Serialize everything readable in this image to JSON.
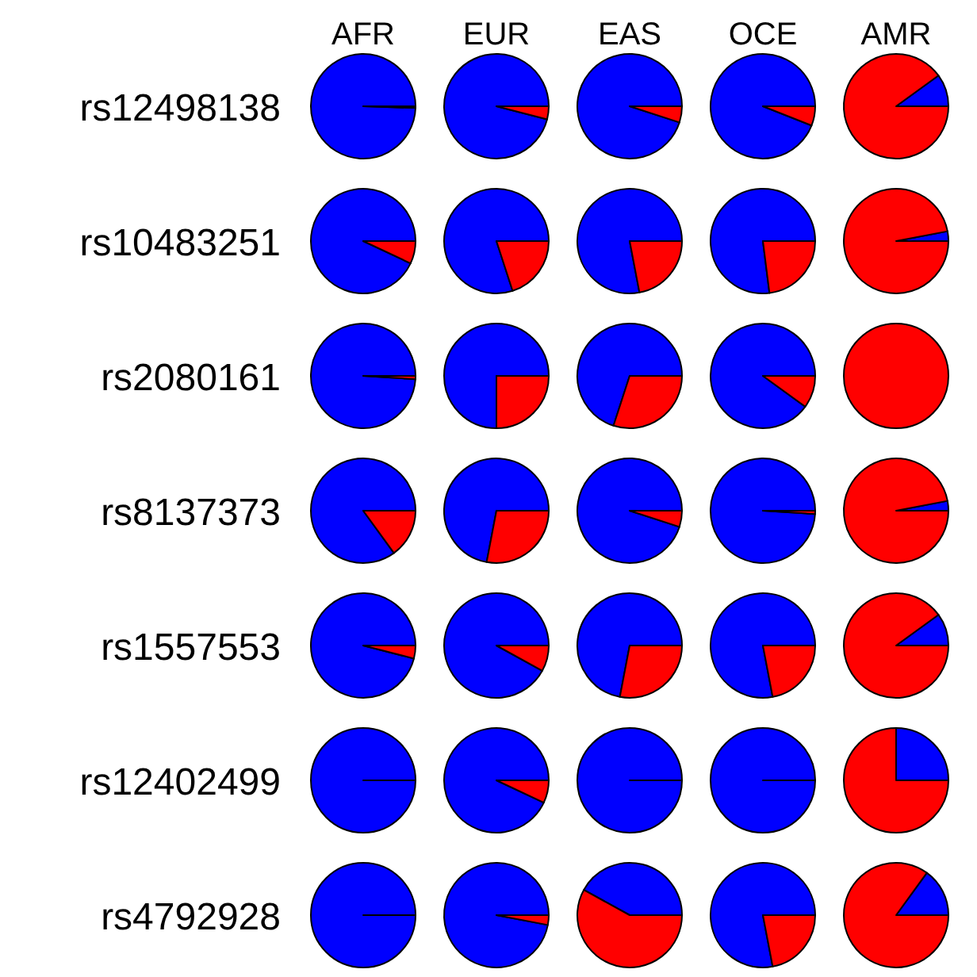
{
  "chart_data": [
    {
      "type": "pie",
      "title": "AFR",
      "ylabel": "rs12498138",
      "categories": [
        null,
        null
      ],
      "values": [
        99.5,
        0.5
      ],
      "colors": [
        "#0000ff",
        "#ff0000"
      ]
    },
    {
      "type": "pie",
      "title": "EUR",
      "categories": [
        null,
        null
      ],
      "values": [
        96,
        4
      ],
      "colors": [
        "#0000ff",
        "#ff0000"
      ]
    },
    {
      "type": "pie",
      "title": "EAS",
      "categories": [
        null,
        null
      ],
      "values": [
        95,
        5
      ],
      "colors": [
        "#0000ff",
        "#ff0000"
      ]
    },
    {
      "type": "pie",
      "title": "OCE",
      "categories": [
        null,
        null
      ],
      "values": [
        94,
        6
      ],
      "colors": [
        "#0000ff",
        "#ff0000"
      ]
    },
    {
      "type": "pie",
      "title": "AMR",
      "categories": [
        null,
        null
      ],
      "values": [
        10,
        90
      ],
      "colors": [
        "#0000ff",
        "#ff0000"
      ]
    },
    {
      "type": "pie",
      "ylabel": "rs10483251",
      "categories": [
        null,
        null
      ],
      "values": [
        93,
        7
      ],
      "colors": [
        "#0000ff",
        "#ff0000"
      ]
    },
    {
      "type": "pie",
      "categories": [
        null,
        null
      ],
      "values": [
        80,
        20
      ],
      "colors": [
        "#0000ff",
        "#ff0000"
      ]
    },
    {
      "type": "pie",
      "categories": [
        null,
        null
      ],
      "values": [
        78,
        22
      ],
      "colors": [
        "#0000ff",
        "#ff0000"
      ]
    },
    {
      "type": "pie",
      "categories": [
        null,
        null
      ],
      "values": [
        77,
        23
      ],
      "colors": [
        "#0000ff",
        "#ff0000"
      ]
    },
    {
      "type": "pie",
      "categories": [
        null,
        null
      ],
      "values": [
        3,
        97
      ],
      "colors": [
        "#0000ff",
        "#ff0000"
      ]
    },
    {
      "type": "pie",
      "ylabel": "rs2080161",
      "categories": [
        null,
        null
      ],
      "values": [
        99,
        1
      ],
      "colors": [
        "#0000ff",
        "#ff0000"
      ]
    },
    {
      "type": "pie",
      "categories": [
        null,
        null
      ],
      "values": [
        75,
        25
      ],
      "colors": [
        "#0000ff",
        "#ff0000"
      ]
    },
    {
      "type": "pie",
      "categories": [
        null,
        null
      ],
      "values": [
        70,
        30
      ],
      "colors": [
        "#0000ff",
        "#ff0000"
      ]
    },
    {
      "type": "pie",
      "categories": [
        null,
        null
      ],
      "values": [
        90,
        10
      ],
      "colors": [
        "#0000ff",
        "#ff0000"
      ]
    },
    {
      "type": "pie",
      "categories": [
        null,
        null
      ],
      "values": [
        0,
        100
      ],
      "colors": [
        "#0000ff",
        "#ff0000"
      ]
    },
    {
      "type": "pie",
      "ylabel": "rs8137373",
      "categories": [
        null,
        null
      ],
      "values": [
        85,
        15
      ],
      "colors": [
        "#0000ff",
        "#ff0000"
      ]
    },
    {
      "type": "pie",
      "categories": [
        null,
        null
      ],
      "values": [
        72,
        28
      ],
      "colors": [
        "#0000ff",
        "#ff0000"
      ]
    },
    {
      "type": "pie",
      "categories": [
        null,
        null
      ],
      "values": [
        95,
        5
      ],
      "colors": [
        "#0000ff",
        "#ff0000"
      ]
    },
    {
      "type": "pie",
      "categories": [
        null,
        null
      ],
      "values": [
        99,
        1
      ],
      "colors": [
        "#0000ff",
        "#ff0000"
      ]
    },
    {
      "type": "pie",
      "categories": [
        null,
        null
      ],
      "values": [
        3,
        97
      ],
      "colors": [
        "#0000ff",
        "#ff0000"
      ]
    },
    {
      "type": "pie",
      "ylabel": "rs1557553",
      "categories": [
        null,
        null
      ],
      "values": [
        96,
        4
      ],
      "colors": [
        "#0000ff",
        "#ff0000"
      ]
    },
    {
      "type": "pie",
      "categories": [
        null,
        null
      ],
      "values": [
        92,
        8
      ],
      "colors": [
        "#0000ff",
        "#ff0000"
      ]
    },
    {
      "type": "pie",
      "categories": [
        null,
        null
      ],
      "values": [
        72,
        28
      ],
      "colors": [
        "#0000ff",
        "#ff0000"
      ]
    },
    {
      "type": "pie",
      "categories": [
        null,
        null
      ],
      "values": [
        78,
        22
      ],
      "colors": [
        "#0000ff",
        "#ff0000"
      ]
    },
    {
      "type": "pie",
      "categories": [
        null,
        null
      ],
      "values": [
        10,
        90
      ],
      "colors": [
        "#0000ff",
        "#ff0000"
      ]
    },
    {
      "type": "pie",
      "ylabel": "rs12402499",
      "categories": [
        null,
        null
      ],
      "values": [
        100,
        0
      ],
      "colors": [
        "#0000ff",
        "#ff0000"
      ]
    },
    {
      "type": "pie",
      "categories": [
        null,
        null
      ],
      "values": [
        93,
        7
      ],
      "colors": [
        "#0000ff",
        "#ff0000"
      ]
    },
    {
      "type": "pie",
      "categories": [
        null,
        null
      ],
      "values": [
        100,
        0
      ],
      "colors": [
        "#0000ff",
        "#ff0000"
      ]
    },
    {
      "type": "pie",
      "categories": [
        null,
        null
      ],
      "values": [
        100,
        0
      ],
      "colors": [
        "#0000ff",
        "#ff0000"
      ]
    },
    {
      "type": "pie",
      "categories": [
        null,
        null
      ],
      "values": [
        25,
        75
      ],
      "colors": [
        "#0000ff",
        "#ff0000"
      ]
    },
    {
      "type": "pie",
      "ylabel": "rs4792928",
      "categories": [
        null,
        null
      ],
      "values": [
        100,
        0
      ],
      "colors": [
        "#0000ff",
        "#ff0000"
      ]
    },
    {
      "type": "pie",
      "categories": [
        null,
        null
      ],
      "values": [
        97,
        3
      ],
      "colors": [
        "#0000ff",
        "#ff0000"
      ]
    },
    {
      "type": "pie",
      "categories": [
        null,
        null
      ],
      "values": [
        42,
        58
      ],
      "colors": [
        "#0000ff",
        "#ff0000"
      ]
    },
    {
      "type": "pie",
      "categories": [
        null,
        null
      ],
      "values": [
        78,
        22
      ],
      "colors": [
        "#0000ff",
        "#ff0000"
      ]
    },
    {
      "type": "pie",
      "categories": [
        null,
        null
      ],
      "values": [
        15,
        85
      ],
      "colors": [
        "#0000ff",
        "#ff0000"
      ]
    }
  ]
}
